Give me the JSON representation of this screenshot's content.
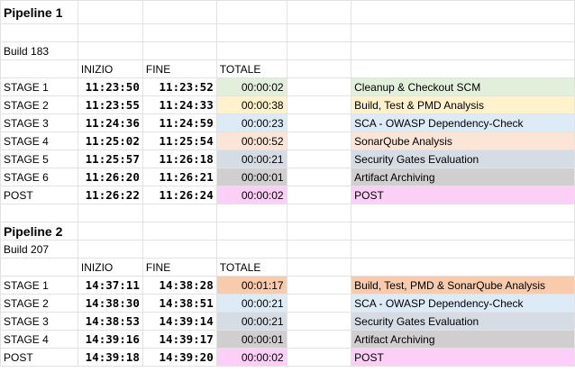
{
  "colors": {
    "green": "#e2efda",
    "yellow": "#fff2cc",
    "blue": "#ddebf7",
    "orange": "#fce4d6",
    "slate": "#d6dce4",
    "gray": "#d0cece",
    "pink": "#fccff7",
    "peach": "#f8cbad"
  },
  "headers": {
    "start": "INIZIO",
    "end": "FINE",
    "total": "TOTALE"
  },
  "pipelines": [
    {
      "title": "Pipeline 1",
      "build": "Build 183",
      "rows": [
        {
          "stage": "STAGE 1",
          "start": "11:23:50",
          "end": "11:23:52",
          "total": "00:00:02",
          "desc": "Cleanup & Checkout SCM",
          "color": "green"
        },
        {
          "stage": "STAGE 2",
          "start": "11:23:55",
          "end": "11:24:33",
          "total": "00:00:38",
          "desc": "Build, Test & PMD Analysis",
          "color": "yellow"
        },
        {
          "stage": "STAGE 3",
          "start": "11:24:36",
          "end": "11:24:59",
          "total": "00:00:23",
          "desc": "SCA - OWASP Dependency-Check",
          "color": "blue"
        },
        {
          "stage": "STAGE 4",
          "start": "11:25:02",
          "end": "11:25:54",
          "total": "00:00:52",
          "desc": "SonarQube Analysis",
          "color": "orange"
        },
        {
          "stage": "STAGE 5",
          "start": "11:25:57",
          "end": "11:26:18",
          "total": "00:00:21",
          "desc": "Security Gates Evaluation",
          "color": "slate"
        },
        {
          "stage": "STAGE 6",
          "start": "11:26:20",
          "end": "11:26:21",
          "total": "00:00:01",
          "desc": "Artifact Archiving",
          "color": "gray"
        },
        {
          "stage": "POST",
          "start": "11:26:22",
          "end": "11:26:24",
          "total": "00:00:02",
          "desc": "POST",
          "color": "pink"
        }
      ]
    },
    {
      "title": "Pipeline 2",
      "build": "Build 207",
      "rows": [
        {
          "stage": "STAGE 1",
          "start": "14:37:11",
          "end": "14:38:28",
          "total": "00:01:17",
          "desc": "Build, Test, PMD & SonarQube Analysis",
          "color": "peach"
        },
        {
          "stage": "STAGE 2",
          "start": "14:38:30",
          "end": "14:38:51",
          "total": "00:00:21",
          "desc": "SCA - OWASP Dependency-Check",
          "color": "blue"
        },
        {
          "stage": "STAGE 3",
          "start": "14:38:53",
          "end": "14:39:14",
          "total": "00:00:21",
          "desc": "Security Gates Evaluation",
          "color": "slate"
        },
        {
          "stage": "STAGE 4",
          "start": "14:39:16",
          "end": "14:39:17",
          "total": "00:00:01",
          "desc": "Artifact Archiving",
          "color": "gray"
        },
        {
          "stage": "POST",
          "start": "14:39:18",
          "end": "14:39:20",
          "total": "00:00:02",
          "desc": "POST",
          "color": "pink"
        }
      ]
    }
  ]
}
